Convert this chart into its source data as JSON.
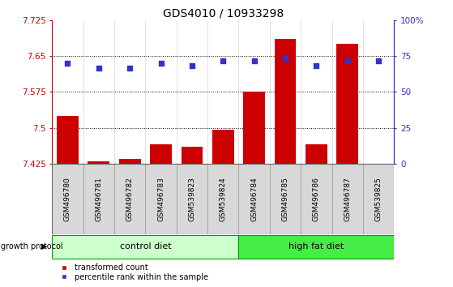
{
  "title": "GDS4010 / 10933298",
  "samples": [
    "GSM496780",
    "GSM496781",
    "GSM496782",
    "GSM496783",
    "GSM539823",
    "GSM539824",
    "GSM496784",
    "GSM496785",
    "GSM496786",
    "GSM496787",
    "GSM539825"
  ],
  "bar_values": [
    7.525,
    7.43,
    7.435,
    7.465,
    7.46,
    7.495,
    7.575,
    7.685,
    7.465,
    7.675,
    7.425
  ],
  "scatter_values": [
    7.635,
    7.625,
    7.625,
    7.635,
    7.63,
    7.64,
    7.64,
    7.645,
    7.63,
    7.64,
    7.64
  ],
  "bar_bottom": 7.425,
  "ylim_left": [
    7.425,
    7.725
  ],
  "ylim_right": [
    0,
    100
  ],
  "yticks_left": [
    7.425,
    7.5,
    7.575,
    7.65,
    7.725
  ],
  "ytick_labels_left": [
    "7.425",
    "7.5",
    "7.575",
    "7.65",
    "7.725"
  ],
  "yticks_right": [
    0,
    25,
    50,
    75,
    100
  ],
  "ytick_labels_right": [
    "0",
    "25",
    "50",
    "75",
    "100%"
  ],
  "hlines": [
    7.5,
    7.575,
    7.65
  ],
  "bar_color": "#cc0000",
  "scatter_color": "#3333cc",
  "control_count": 6,
  "groups": [
    {
      "label": "control diet",
      "start": 0,
      "end": 6,
      "color": "#ccffcc"
    },
    {
      "label": "high fat diet",
      "start": 6,
      "end": 11,
      "color": "#44ee44"
    }
  ],
  "group_label": "growth protocol",
  "legend_items": [
    {
      "label": "transformed count",
      "color": "#cc0000",
      "marker": "s"
    },
    {
      "label": "percentile rank within the sample",
      "color": "#3333cc",
      "marker": "s"
    }
  ],
  "bg_color": "#ffffff",
  "plot_bg_color": "#ffffff",
  "label_box_color": "#d8d8d8",
  "title_fontsize": 10,
  "tick_label_fontsize": 7.5,
  "sample_fontsize": 6.5,
  "group_fontsize": 8
}
